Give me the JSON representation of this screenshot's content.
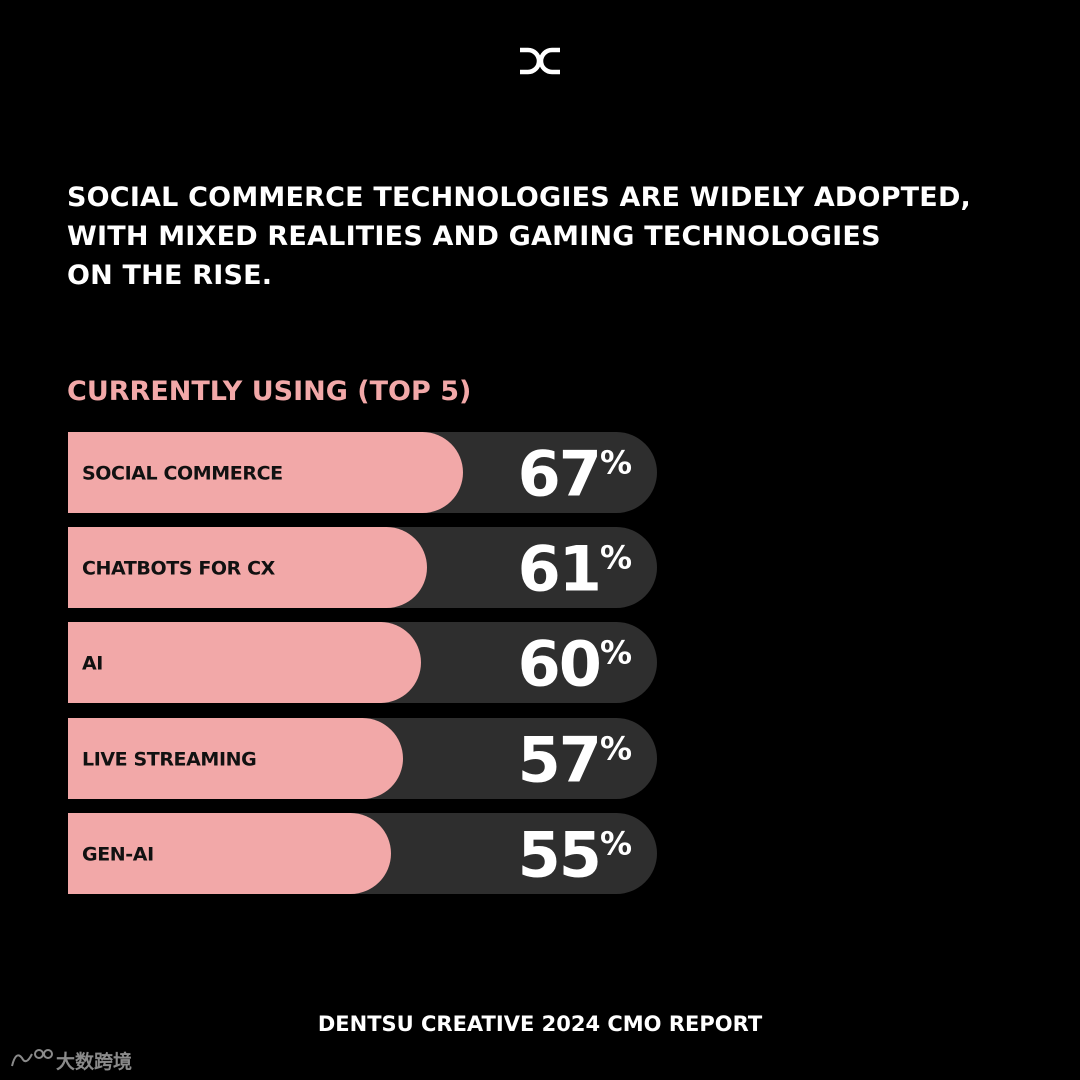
{
  "headline": "SOCIAL COMMERCE TECHNOLOGIES ARE WIDELY ADOPTED,\nWITH MIXED REALITIES AND GAMING TECHNOLOGIES\nON THE RISE.",
  "footer": "DENTSU CREATIVE 2024 CMO REPORT",
  "colors": {
    "background": "#000000",
    "bar_fill": "#f2a8a8",
    "bar_track": "#2e2e2e",
    "text": "#ffffff",
    "accent": "#f2a8a8"
  },
  "logo": {
    "icon": "dentsu-creative-logo-icon",
    "text": "DC"
  },
  "watermark": {
    "icon": "watermark-logo-icon",
    "text": "大数跨境"
  },
  "chart_data": {
    "type": "bar",
    "orientation": "horizontal",
    "title": "CURRENTLY USING (TOP 5)",
    "categories": [
      "SOCIAL COMMERCE",
      "CHATBOTS FOR CX",
      "AI",
      "LIVE STREAMING",
      "GEN-AI"
    ],
    "values": [
      67,
      61,
      60,
      57,
      55
    ],
    "value_labels": [
      "67",
      "61",
      "60",
      "57",
      "55"
    ],
    "value_suffix": "%",
    "xlim": [
      0,
      100
    ],
    "grid": false,
    "legend": "none"
  }
}
